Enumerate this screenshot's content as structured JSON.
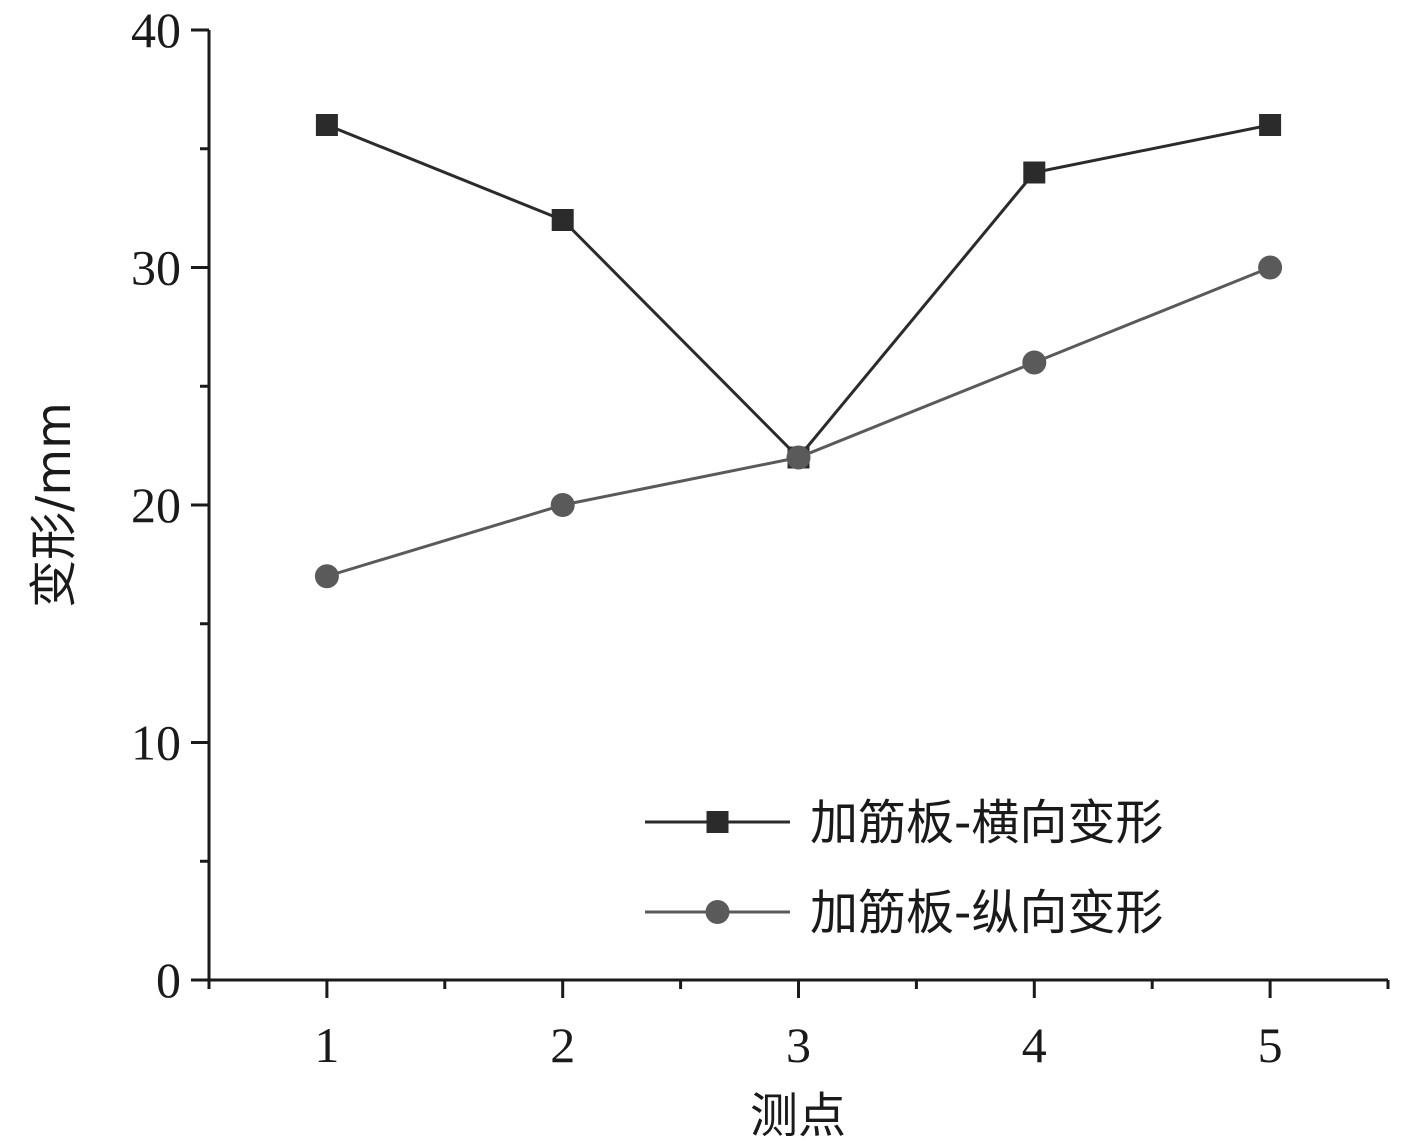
{
  "chart_data": {
    "type": "line",
    "xlabel": "测点",
    "ylabel": "变形/mm",
    "x": [
      1,
      2,
      3,
      4,
      5
    ],
    "xlim": [
      0.5,
      5.5
    ],
    "ylim": [
      0,
      40
    ],
    "y_ticks": [
      0,
      10,
      20,
      30,
      40
    ],
    "x_ticks": [
      1,
      2,
      3,
      4,
      5
    ],
    "grid": false,
    "legend_position": "bottom-right",
    "series": [
      {
        "name": "加筋板-横向变形",
        "values": [
          36,
          32,
          22,
          34,
          36
        ],
        "marker": "square",
        "color": "#2b2b2b"
      },
      {
        "name": "加筋板-纵向变形",
        "values": [
          17,
          20,
          22,
          26,
          30
        ],
        "marker": "circle",
        "color": "#5a5a5a"
      }
    ]
  }
}
